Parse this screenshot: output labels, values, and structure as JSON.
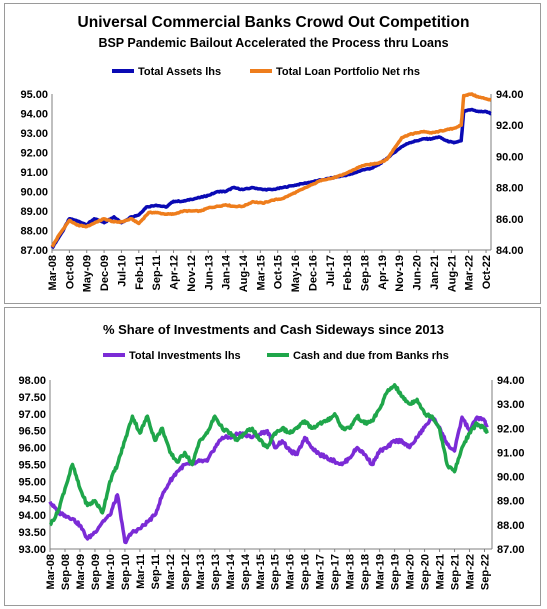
{
  "chart_data": [
    {
      "type": "line",
      "title": "Universal Commercial Banks Crowd Out Competition",
      "subtitle": "BSP Pandemic Bailout Accelerated the Process thru Loans",
      "x_ticks": [
        "Mar-08",
        "Oct-08",
        "May-09",
        "Dec-09",
        "Jul-10",
        "Feb-11",
        "Sep-11",
        "Apr-12",
        "Nov-12",
        "Jun-13",
        "Jan-14",
        "Aug-14",
        "Mar-15",
        "Oct-15",
        "May-16",
        "Dec-16",
        "Jul-17",
        "Feb-18",
        "Sep-18",
        "Apr-19",
        "Nov-19",
        "Jun-20",
        "Jan-21",
        "Aug-21",
        "Mar-22",
        "Oct-22"
      ],
      "y_left_ticks": [
        "87.00",
        "88.00",
        "89.00",
        "90.00",
        "91.00",
        "92.00",
        "93.00",
        "94.00",
        "95.00"
      ],
      "y_right_ticks": [
        "84.00",
        "86.00",
        "88.00",
        "90.00",
        "92.00",
        "94.00"
      ],
      "ylim_left": [
        87,
        95
      ],
      "ylim_right": [
        84,
        94
      ],
      "legend_position": "top-center",
      "series": [
        {
          "name": "Total Assets lhs",
          "axis": "left",
          "color": "#0a0ab4",
          "points": [
            [
              "2008-03",
              87.1
            ],
            [
              "2008-07",
              87.9
            ],
            [
              "2008-10",
              88.6
            ],
            [
              "2009-01",
              88.5
            ],
            [
              "2009-05",
              88.3
            ],
            [
              "2009-08",
              88.6
            ],
            [
              "2009-12",
              88.4
            ],
            [
              "2010-04",
              88.7
            ],
            [
              "2010-07",
              88.4
            ],
            [
              "2010-11",
              88.7
            ],
            [
              "2011-02",
              88.8
            ],
            [
              "2011-05",
              89.2
            ],
            [
              "2011-09",
              89.3
            ],
            [
              "2012-01",
              89.2
            ],
            [
              "2012-04",
              89.5
            ],
            [
              "2012-08",
              89.5
            ],
            [
              "2012-11",
              89.6
            ],
            [
              "2013-03",
              89.7
            ],
            [
              "2013-06",
              89.8
            ],
            [
              "2013-10",
              90.0
            ],
            [
              "2014-01",
              90.0
            ],
            [
              "2014-04",
              90.2
            ],
            [
              "2014-08",
              90.1
            ],
            [
              "2014-12",
              90.2
            ],
            [
              "2015-04",
              90.1
            ],
            [
              "2015-08",
              90.1
            ],
            [
              "2015-12",
              90.2
            ],
            [
              "2016-04",
              90.3
            ],
            [
              "2016-08",
              90.4
            ],
            [
              "2016-12",
              90.5
            ],
            [
              "2017-04",
              90.6
            ],
            [
              "2017-08",
              90.7
            ],
            [
              "2017-12",
              90.8
            ],
            [
              "2018-04",
              90.9
            ],
            [
              "2018-08",
              91.1
            ],
            [
              "2018-12",
              91.2
            ],
            [
              "2019-03",
              91.4
            ],
            [
              "2019-06",
              91.7
            ],
            [
              "2019-09",
              92.0
            ],
            [
              "2019-12",
              92.3
            ],
            [
              "2020-03",
              92.5
            ],
            [
              "2020-06",
              92.6
            ],
            [
              "2020-09",
              92.7
            ],
            [
              "2020-12",
              92.7
            ],
            [
              "2021-03",
              92.8
            ],
            [
              "2021-06",
              92.6
            ],
            [
              "2021-09",
              92.5
            ],
            [
              "2021-12",
              92.6
            ],
            [
              "2022-01",
              94.1
            ],
            [
              "2022-04",
              94.2
            ],
            [
              "2022-07",
              94.1
            ],
            [
              "2022-10",
              94.1
            ],
            [
              "2022-12",
              94.0
            ]
          ]
        },
        {
          "name": "Total Loan Portfolio Net rhs",
          "axis": "right",
          "color": "#ee7d1c",
          "points": [
            [
              "2008-03",
              84.2
            ],
            [
              "2008-06",
              85.0
            ],
            [
              "2008-10",
              85.9
            ],
            [
              "2009-01",
              85.6
            ],
            [
              "2009-05",
              85.5
            ],
            [
              "2009-09",
              85.8
            ],
            [
              "2009-12",
              86.0
            ],
            [
              "2010-04",
              85.8
            ],
            [
              "2010-07",
              85.8
            ],
            [
              "2010-11",
              86.0
            ],
            [
              "2011-02",
              85.7
            ],
            [
              "2011-06",
              86.4
            ],
            [
              "2011-09",
              86.4
            ],
            [
              "2012-01",
              86.3
            ],
            [
              "2012-04",
              86.3
            ],
            [
              "2012-08",
              86.5
            ],
            [
              "2012-11",
              86.5
            ],
            [
              "2013-03",
              86.5
            ],
            [
              "2013-06",
              86.7
            ],
            [
              "2013-10",
              86.8
            ],
            [
              "2014-01",
              86.9
            ],
            [
              "2014-04",
              86.8
            ],
            [
              "2014-08",
              86.8
            ],
            [
              "2014-12",
              87.1
            ],
            [
              "2015-04",
              87.0
            ],
            [
              "2015-08",
              87.2
            ],
            [
              "2015-12",
              87.3
            ],
            [
              "2016-04",
              87.6
            ],
            [
              "2016-08",
              87.9
            ],
            [
              "2016-12",
              88.2
            ],
            [
              "2017-04",
              88.5
            ],
            [
              "2017-08",
              88.6
            ],
            [
              "2017-12",
              88.8
            ],
            [
              "2018-04",
              89.1
            ],
            [
              "2018-08",
              89.4
            ],
            [
              "2018-12",
              89.5
            ],
            [
              "2019-03",
              89.6
            ],
            [
              "2019-06",
              89.8
            ],
            [
              "2019-09",
              90.5
            ],
            [
              "2019-12",
              91.2
            ],
            [
              "2020-03",
              91.4
            ],
            [
              "2020-06",
              91.5
            ],
            [
              "2020-09",
              91.6
            ],
            [
              "2020-12",
              91.5
            ],
            [
              "2021-03",
              91.6
            ],
            [
              "2021-06",
              91.7
            ],
            [
              "2021-09",
              91.8
            ],
            [
              "2021-12",
              92.0
            ],
            [
              "2022-01",
              93.9
            ],
            [
              "2022-04",
              94.0
            ],
            [
              "2022-07",
              93.8
            ],
            [
              "2022-10",
              93.7
            ],
            [
              "2022-12",
              93.6
            ]
          ]
        }
      ]
    },
    {
      "type": "line",
      "title": "% Share of Investments and Cash Sideways since 2013",
      "x_ticks": [
        "Mar-08",
        "Sep-08",
        "Mar-09",
        "Sep-09",
        "Mar-10",
        "Sep-10",
        "Mar-11",
        "Sep-11",
        "Mar-12",
        "Sep-12",
        "Mar-13",
        "Sep-13",
        "Mar-14",
        "Sep-14",
        "Mar-15",
        "Sep-15",
        "Mar-16",
        "Sep-16",
        "Mar-17",
        "Sep-17",
        "Mar-18",
        "Sep-18",
        "Mar-19",
        "Sep-19",
        "Mar-20",
        "Sep-20",
        "Mar-21",
        "Sep-21",
        "Mar-22",
        "Sep-22"
      ],
      "y_left_ticks": [
        "93.00",
        "93.50",
        "94.00",
        "94.50",
        "95.00",
        "95.50",
        "96.00",
        "96.50",
        "97.00",
        "97.50",
        "98.00"
      ],
      "y_right_ticks": [
        "87.00",
        "88.00",
        "89.00",
        "90.00",
        "91.00",
        "92.00",
        "93.00",
        "94.00"
      ],
      "ylim_left": [
        93,
        98
      ],
      "ylim_right": [
        87,
        94
      ],
      "legend_position": "top-center",
      "series": [
        {
          "name": "Total Investments lhs",
          "axis": "left",
          "color": "#7b2bd6",
          "points": [
            [
              "2008-03",
              94.4
            ],
            [
              "2008-06",
              94.1
            ],
            [
              "2008-09",
              94.0
            ],
            [
              "2008-12",
              93.9
            ],
            [
              "2009-03",
              93.7
            ],
            [
              "2009-06",
              93.3
            ],
            [
              "2009-09",
              93.5
            ],
            [
              "2009-12",
              93.8
            ],
            [
              "2010-03",
              94.0
            ],
            [
              "2010-06",
              94.6
            ],
            [
              "2010-09",
              93.2
            ],
            [
              "2010-12",
              93.5
            ],
            [
              "2011-03",
              93.6
            ],
            [
              "2011-06",
              93.8
            ],
            [
              "2011-09",
              94.0
            ],
            [
              "2011-12",
              94.6
            ],
            [
              "2012-03",
              95.0
            ],
            [
              "2012-06",
              95.3
            ],
            [
              "2012-09",
              95.5
            ],
            [
              "2012-12",
              95.5
            ],
            [
              "2013-03",
              95.6
            ],
            [
              "2013-06",
              95.6
            ],
            [
              "2013-09",
              96.0
            ],
            [
              "2013-12",
              96.3
            ],
            [
              "2014-03",
              96.3
            ],
            [
              "2014-06",
              96.4
            ],
            [
              "2014-09",
              96.4
            ],
            [
              "2014-12",
              96.3
            ],
            [
              "2015-03",
              96.4
            ],
            [
              "2015-06",
              96.5
            ],
            [
              "2015-09",
              96.0
            ],
            [
              "2015-12",
              96.2
            ],
            [
              "2016-03",
              95.9
            ],
            [
              "2016-06",
              95.8
            ],
            [
              "2016-09",
              96.3
            ],
            [
              "2016-12",
              96.0
            ],
            [
              "2017-03",
              95.8
            ],
            [
              "2017-06",
              95.7
            ],
            [
              "2017-09",
              95.6
            ],
            [
              "2017-12",
              95.5
            ],
            [
              "2018-03",
              95.7
            ],
            [
              "2018-06",
              96.0
            ],
            [
              "2018-09",
              95.8
            ],
            [
              "2018-12",
              95.5
            ],
            [
              "2019-03",
              95.9
            ],
            [
              "2019-06",
              96.0
            ],
            [
              "2019-09",
              96.2
            ],
            [
              "2019-12",
              96.2
            ],
            [
              "2020-03",
              96.0
            ],
            [
              "2020-06",
              96.3
            ],
            [
              "2020-09",
              96.6
            ],
            [
              "2020-12",
              96.9
            ],
            [
              "2021-03",
              96.6
            ],
            [
              "2021-06",
              96.1
            ],
            [
              "2021-09",
              95.9
            ],
            [
              "2021-12",
              96.9
            ],
            [
              "2022-03",
              96.5
            ],
            [
              "2022-06",
              96.9
            ],
            [
              "2022-09",
              96.8
            ],
            [
              "2022-10",
              96.6
            ]
          ]
        },
        {
          "name": "Cash and due from Banks rhs",
          "axis": "right",
          "color": "#1fa64a",
          "points": [
            [
              "2008-03",
              88.0
            ],
            [
              "2008-06",
              88.5
            ],
            [
              "2008-09",
              89.5
            ],
            [
              "2008-12",
              90.5
            ],
            [
              "2009-03",
              89.5
            ],
            [
              "2009-06",
              88.8
            ],
            [
              "2009-09",
              89.0
            ],
            [
              "2009-12",
              88.5
            ],
            [
              "2010-03",
              89.8
            ],
            [
              "2010-06",
              90.5
            ],
            [
              "2010-09",
              91.5
            ],
            [
              "2010-12",
              92.5
            ],
            [
              "2011-03",
              91.8
            ],
            [
              "2011-06",
              92.5
            ],
            [
              "2011-09",
              91.5
            ],
            [
              "2011-12",
              92.0
            ],
            [
              "2012-03",
              91.0
            ],
            [
              "2012-06",
              90.6
            ],
            [
              "2012-09",
              91.0
            ],
            [
              "2012-12",
              90.5
            ],
            [
              "2013-03",
              91.5
            ],
            [
              "2013-06",
              91.8
            ],
            [
              "2013-09",
              92.5
            ],
            [
              "2013-12",
              92.0
            ],
            [
              "2014-03",
              91.8
            ],
            [
              "2014-06",
              91.5
            ],
            [
              "2014-09",
              91.8
            ],
            [
              "2014-12",
              92.0
            ],
            [
              "2015-03",
              91.5
            ],
            [
              "2015-06",
              91.2
            ],
            [
              "2015-09",
              91.8
            ],
            [
              "2015-12",
              92.0
            ],
            [
              "2016-03",
              91.8
            ],
            [
              "2016-06",
              92.0
            ],
            [
              "2016-09",
              92.3
            ],
            [
              "2016-12",
              92.0
            ],
            [
              "2017-03",
              92.2
            ],
            [
              "2017-06",
              92.3
            ],
            [
              "2017-09",
              92.6
            ],
            [
              "2017-12",
              92.0
            ],
            [
              "2018-03",
              92.0
            ],
            [
              "2018-06",
              92.5
            ],
            [
              "2018-09",
              92.2
            ],
            [
              "2018-12",
              92.3
            ],
            [
              "2019-03",
              92.8
            ],
            [
              "2019-06",
              93.5
            ],
            [
              "2019-09",
              93.8
            ],
            [
              "2019-12",
              93.3
            ],
            [
              "2020-03",
              93.0
            ],
            [
              "2020-06",
              93.2
            ],
            [
              "2020-09",
              92.6
            ],
            [
              "2020-12",
              92.5
            ],
            [
              "2021-03",
              92.0
            ],
            [
              "2021-06",
              90.5
            ],
            [
              "2021-09",
              90.2
            ],
            [
              "2021-12",
              91.2
            ],
            [
              "2022-03",
              91.8
            ],
            [
              "2022-06",
              92.2
            ],
            [
              "2022-09",
              92.0
            ],
            [
              "2022-10",
              91.8
            ]
          ]
        }
      ]
    }
  ]
}
